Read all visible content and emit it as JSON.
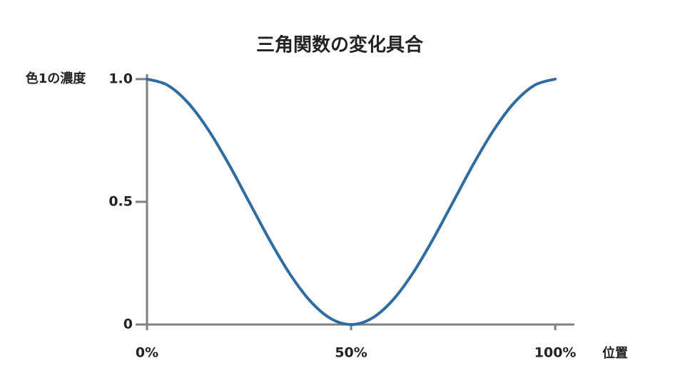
{
  "chart_data": {
    "type": "line",
    "title": "三角関数の変化具合",
    "x_label": "位置",
    "y_label": "色1の濃度",
    "x": [
      0,
      5,
      10,
      15,
      20,
      25,
      30,
      35,
      40,
      45,
      50,
      55,
      60,
      65,
      70,
      75,
      80,
      85,
      90,
      95,
      100
    ],
    "series": [
      {
        "color": "#2e6ca1",
        "values": [
          1,
          0.9755,
          0.9045,
          0.7939,
          0.6545,
          0.5,
          0.3455,
          0.2061,
          0.0955,
          0.0245,
          0,
          0.0245,
          0.0955,
          0.2061,
          0.3455,
          0.5,
          0.6545,
          0.7939,
          0.9045,
          0.9755,
          1
        ]
      }
    ],
    "xlim": [
      0,
      104.7
    ],
    "ylim": [
      0,
      1.02
    ],
    "xticks": [
      {
        "value": 0,
        "label": "0%"
      },
      {
        "value": 50,
        "label": "50%"
      },
      {
        "value": 100,
        "label": "100%"
      }
    ],
    "yticks": [
      0,
      0.5,
      {
        "value": 1,
        "label": "1.0"
      }
    ],
    "axis_color": "#808080"
  }
}
